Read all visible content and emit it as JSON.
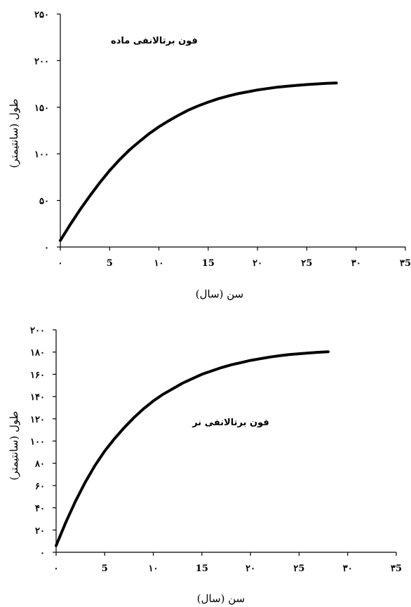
{
  "chart_data": [
    {
      "type": "line",
      "annotation": "فون برتالانفی ماده",
      "xlabel": "سن (سال)",
      "ylabel": "طول (سانتیمتر)",
      "xlim": [
        0,
        35
      ],
      "ylim": [
        0,
        250
      ],
      "x_ticks": [
        0,
        5,
        10,
        15,
        20,
        25,
        30,
        35
      ],
      "x_tick_labels": [
        "۰",
        "5",
        "۱۰",
        "15",
        "۲۰",
        "۲5",
        "۳۰",
        "۳5"
      ],
      "y_ticks": [
        0,
        50,
        100,
        150,
        200,
        250
      ],
      "y_tick_labels": [
        "۰",
        "۵۰",
        "۱۰۰",
        "۱۵۰",
        "۲۰۰",
        "۲۵۰"
      ],
      "grid": false,
      "series": [
        {
          "x": [
            0,
            1,
            2,
            3,
            4,
            5,
            6,
            7,
            8,
            9,
            10,
            11,
            12,
            13,
            14,
            15,
            16,
            17,
            18,
            19,
            20,
            21,
            22,
            23,
            24,
            25,
            26,
            27,
            28
          ],
          "y": [
            7,
            24,
            40,
            55,
            69,
            82,
            93.5,
            104,
            113,
            121.5,
            129,
            135.5,
            141.5,
            147,
            151.5,
            155.5,
            159,
            162,
            164.5,
            166.5,
            168.5,
            170,
            171.5,
            172.5,
            173.5,
            174.3,
            175,
            175.6,
            176
          ]
        }
      ]
    },
    {
      "type": "line",
      "annotation": "فون برتالانفی نر",
      "xlabel": "سن (سال)",
      "ylabel": "طول (سانتیمتر)",
      "xlim": [
        0,
        35
      ],
      "ylim": [
        0,
        200
      ],
      "x_ticks": [
        0,
        5,
        10,
        15,
        20,
        25,
        30,
        35
      ],
      "x_tick_labels": [
        "۰",
        "5",
        "۱۰",
        "15",
        "۲۰",
        "۲5",
        "۳۰",
        "۳5"
      ],
      "y_ticks": [
        0,
        20,
        40,
        60,
        80,
        100,
        120,
        140,
        160,
        180,
        200
      ],
      "y_tick_labels": [
        "۰",
        "۲۰",
        "۴۰",
        "۶۰",
        "۸۰",
        "۱۰۰",
        "۱۲۰",
        "۱۴۰",
        "۱۶۰",
        "۱۸۰",
        "۲۰۰"
      ],
      "grid": false,
      "series": [
        {
          "x": [
            0,
            1,
            2,
            3,
            4,
            5,
            6,
            7,
            8,
            9,
            10,
            11,
            12,
            13,
            14,
            15,
            16,
            17,
            18,
            19,
            20,
            21,
            22,
            23,
            24,
            25,
            26,
            27,
            28
          ],
          "y": [
            6,
            27,
            46,
            63,
            78,
            91,
            102,
            112,
            121,
            129,
            136,
            142,
            147,
            152,
            156,
            160,
            163,
            166,
            168.5,
            170.5,
            172.5,
            174,
            175.5,
            176.7,
            177.7,
            178.5,
            179.2,
            179.8,
            180.3
          ]
        }
      ]
    }
  ]
}
